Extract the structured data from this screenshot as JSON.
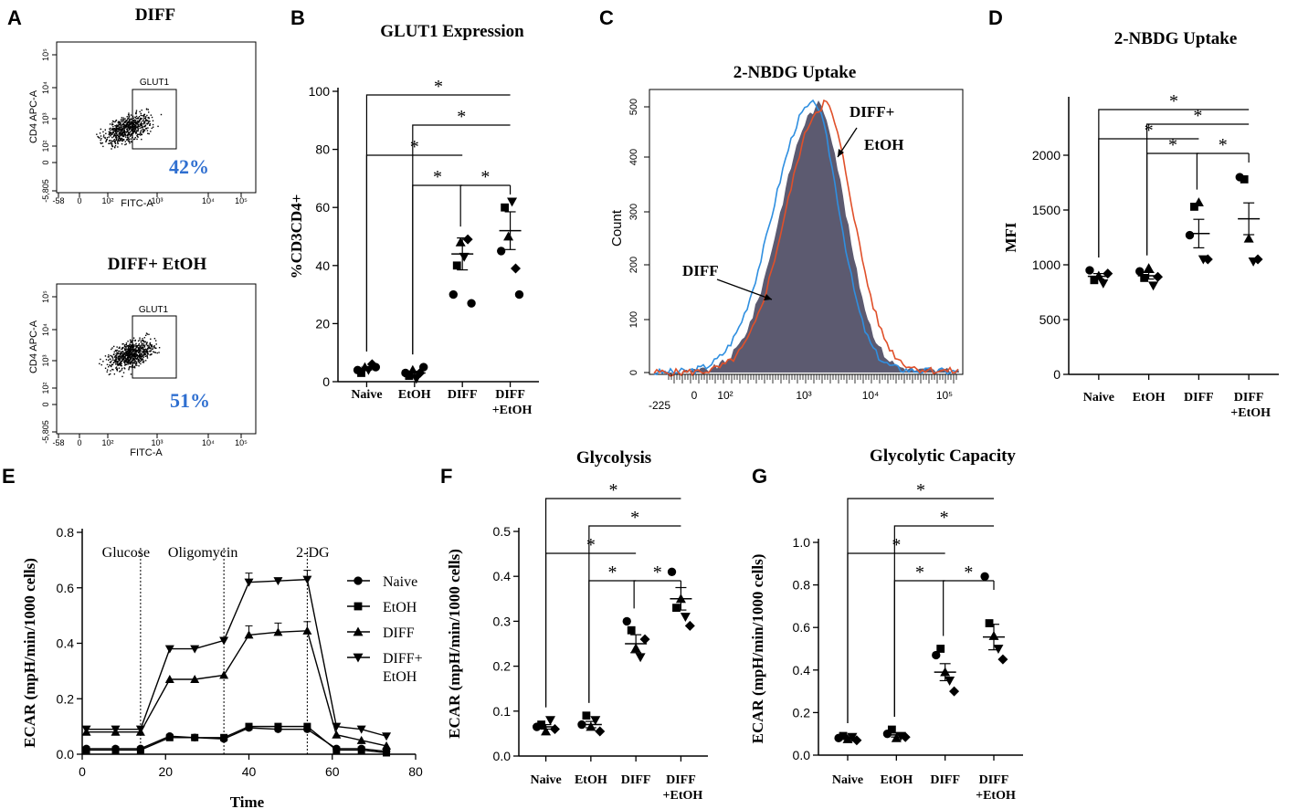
{
  "panels": {
    "A": {
      "letter": "A",
      "top_title": "DIFF",
      "bottom_title": "DIFF+ EtOH",
      "gate_label": "GLUT1",
      "y_label": "CD4 APC-A",
      "x_label": "FITC-A",
      "top_percent": "42%",
      "bottom_percent": "51%",
      "x_ticks": [
        "-58",
        "0",
        "10²",
        "10³",
        "10⁴",
        "10⁵"
      ],
      "y_ticks": [
        "10⁵",
        "10⁴",
        "10³",
        "10²",
        "0",
        "-5,805"
      ]
    },
    "B": {
      "letter": "B"
    },
    "C": {
      "letter": "C",
      "title": "2-NBDG Uptake",
      "y_label": "Count",
      "diff_label": "DIFF",
      "diffetoh_label_1": "DIFF+",
      "diffetoh_label_2": "EtOH",
      "y_ticks": [
        "500",
        "400",
        "300",
        "200",
        "100",
        "0"
      ],
      "x_ticks": [
        "-225",
        "0",
        "10²",
        "10³",
        "10⁴",
        "10⁵"
      ]
    },
    "D": {
      "letter": "D"
    },
    "E": {
      "letter": "E"
    },
    "F": {
      "letter": "F"
    },
    "G": {
      "letter": "G"
    }
  },
  "colors": {
    "blue_text": "#2f6fd0",
    "hist_blue": "#2f8fe0",
    "hist_red": "#e0502a",
    "hist_fill": "#5c5a70"
  },
  "chart_data": [
    {
      "id": "B",
      "type": "scatter",
      "title": "GLUT1 Expression",
      "ylabel": "%CD3CD4+",
      "ylim": [
        0,
        100
      ],
      "yticks": [
        0,
        20,
        40,
        60,
        80,
        100
      ],
      "categories": [
        "Naive",
        "EtOH",
        "DIFF",
        "DIFF\n+EtOH"
      ],
      "points": [
        [
          4,
          3,
          5,
          4,
          6,
          5
        ],
        [
          3,
          2,
          4,
          1,
          3,
          5
        ],
        [
          30,
          40,
          48,
          43,
          49,
          27
        ],
        [
          45,
          60,
          50,
          62,
          39,
          30
        ]
      ],
      "means": [
        4.5,
        3,
        44,
        52
      ],
      "sems": [
        0.5,
        0.6,
        5.5,
        6.5
      ],
      "significance": [
        {
          "from": 0,
          "to": 3,
          "label": "*"
        },
        {
          "from": 1,
          "to": 3,
          "label": "*"
        },
        {
          "from": 0,
          "to": 2,
          "label": "*"
        },
        {
          "from": 1,
          "to": 2,
          "label": "*"
        },
        {
          "from": 2,
          "to": 3,
          "label": "*"
        }
      ]
    },
    {
      "id": "D",
      "type": "scatter",
      "title": "2-NBDG Uptake",
      "ylabel": "MFI",
      "ylim": [
        0,
        2500
      ],
      "yticks": [
        0,
        500,
        1000,
        1500,
        2000
      ],
      "categories": [
        "Naive",
        "EtOH",
        "DIFF",
        "DIFF\n+EtOH"
      ],
      "points": [
        [
          950,
          860,
          900,
          830,
          920
        ],
        [
          940,
          880,
          970,
          810,
          890
        ],
        [
          1270,
          1530,
          1570,
          1050,
          1050
        ],
        [
          1800,
          1780,
          1240,
          1030,
          1050
        ]
      ],
      "means": [
        895,
        900,
        1285,
        1420
      ],
      "sems": [
        25,
        30,
        130,
        145
      ],
      "significance": [
        {
          "from": 0,
          "to": 3,
          "label": "*"
        },
        {
          "from": 1,
          "to": 3,
          "label": "*"
        },
        {
          "from": 0,
          "to": 2,
          "label": "*"
        },
        {
          "from": 1,
          "to": 2,
          "label": "*"
        },
        {
          "from": 2,
          "to": 3,
          "label": "*"
        }
      ]
    },
    {
      "id": "E",
      "type": "line",
      "title": "",
      "xlabel": "Time",
      "ylabel": "ECAR (mpH/min/1000 cells)",
      "xlim": [
        0,
        80
      ],
      "ylim": [
        0,
        0.8
      ],
      "xticks": [
        0,
        20,
        40,
        60,
        80
      ],
      "yticks": [
        0,
        0.2,
        0.4,
        0.6,
        0.8
      ],
      "x": [
        1,
        8,
        14,
        21,
        27,
        34,
        40,
        47,
        54,
        61,
        67,
        73
      ],
      "series": [
        {
          "name": "Naive",
          "marker": "circle",
          "values": [
            0.02,
            0.02,
            0.02,
            0.065,
            0.06,
            0.055,
            0.095,
            0.09,
            0.09,
            0.02,
            0.02,
            0.01
          ]
        },
        {
          "name": "EtOH",
          "marker": "square",
          "values": [
            0.015,
            0.015,
            0.015,
            0.06,
            0.06,
            0.06,
            0.1,
            0.1,
            0.1,
            0.015,
            0.015,
            0.005
          ]
        },
        {
          "name": "DIFF",
          "marker": "triangle-up",
          "values": [
            0.08,
            0.08,
            0.08,
            0.27,
            0.27,
            0.285,
            0.43,
            0.44,
            0.445,
            0.07,
            0.05,
            0.03
          ]
        },
        {
          "name": "DIFF+\nEtOH",
          "marker": "triangle-down",
          "values": [
            0.09,
            0.09,
            0.09,
            0.38,
            0.38,
            0.41,
            0.62,
            0.625,
            0.63,
            0.1,
            0.09,
            0.065
          ]
        }
      ],
      "annotations": [
        {
          "x": 14,
          "label": "Glucose"
        },
        {
          "x": 34,
          "label": "Oligomycin"
        },
        {
          "x": 54,
          "label": "2-DG"
        }
      ]
    },
    {
      "id": "F",
      "type": "scatter",
      "title": "Glycolysis",
      "ylabel": "ECAR (mpH/min/1000 cells)",
      "ylim": [
        0,
        0.5
      ],
      "yticks": [
        0,
        0.1,
        0.2,
        0.3,
        0.4,
        0.5
      ],
      "categories": [
        "Naive",
        "EtOH",
        "DIFF",
        "DIFF\n+EtOH"
      ],
      "points": [
        [
          0.065,
          0.07,
          0.055,
          0.08,
          0.06
        ],
        [
          0.07,
          0.09,
          0.065,
          0.08,
          0.055
        ],
        [
          0.3,
          0.28,
          0.24,
          0.22,
          0.26
        ],
        [
          0.41,
          0.33,
          0.35,
          0.31,
          0.29
        ]
      ],
      "means": [
        0.065,
        0.07,
        0.25,
        0.35
      ],
      "sems": [
        0.005,
        0.007,
        0.02,
        0.025
      ],
      "significance": [
        {
          "from": 0,
          "to": 3,
          "label": "*"
        },
        {
          "from": 1,
          "to": 3,
          "label": "*"
        },
        {
          "from": 0,
          "to": 2,
          "label": "*"
        },
        {
          "from": 1,
          "to": 2,
          "label": "*"
        },
        {
          "from": 2,
          "to": 3,
          "label": "*"
        }
      ]
    },
    {
      "id": "G",
      "type": "scatter",
      "title": "Glycolytic Capacity",
      "ylabel": "ECAR (mpH/min/1000 cells)",
      "ylim": [
        0,
        1.0
      ],
      "yticks": [
        0,
        0.2,
        0.4,
        0.6,
        0.8,
        1.0
      ],
      "categories": [
        "Naive",
        "EtOH",
        "DIFF",
        "DIFF\n+EtOH"
      ],
      "points": [
        [
          0.08,
          0.09,
          0.075,
          0.085,
          0.07
        ],
        [
          0.1,
          0.12,
          0.08,
          0.09,
          0.085
        ],
        [
          0.47,
          0.5,
          0.39,
          0.35,
          0.3
        ],
        [
          0.84,
          0.62,
          0.56,
          0.5,
          0.45
        ]
      ],
      "means": [
        0.08,
        0.095,
        0.39,
        0.555
      ],
      "sems": [
        0.005,
        0.01,
        0.04,
        0.06
      ],
      "significance": [
        {
          "from": 0,
          "to": 3,
          "label": "*"
        },
        {
          "from": 1,
          "to": 3,
          "label": "*"
        },
        {
          "from": 0,
          "to": 2,
          "label": "*"
        },
        {
          "from": 1,
          "to": 2,
          "label": "*"
        },
        {
          "from": 2,
          "to": 3,
          "label": "*"
        }
      ]
    }
  ]
}
